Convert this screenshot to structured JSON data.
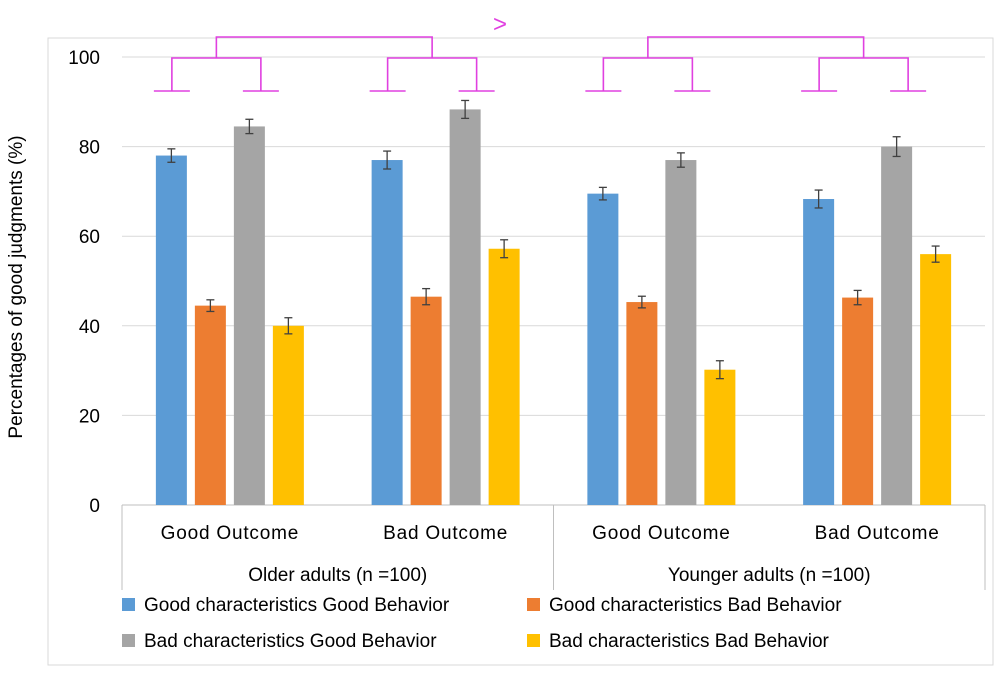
{
  "chart_data": {
    "type": "bar",
    "title": "",
    "ylabel": "Percentages of good judgments (%)",
    "xlabel": "",
    "ylim": [
      0,
      100
    ],
    "yticks": [
      0,
      20,
      40,
      60,
      80,
      100
    ],
    "gridlines": true,
    "legend_position": "bottom",
    "groups": [
      {
        "label": "Older adults (n =100)",
        "categories": [
          "Good Outcome",
          "Bad Outcome"
        ]
      },
      {
        "label": "Younger adults (n =100)",
        "categories": [
          "Good Outcome",
          "Bad Outcome"
        ]
      }
    ],
    "categories": [
      "Good Outcome",
      "Bad Outcome",
      "Good Outcome",
      "Bad Outcome"
    ],
    "series": [
      {
        "name": "Good characteristics Good Behavior",
        "color": "#5B9BD5",
        "values": [
          78,
          77,
          69.5,
          68.3
        ],
        "errors": [
          1.5,
          2.0,
          1.4,
          2.0
        ]
      },
      {
        "name": "Good characteristics Bad Behavior",
        "color": "#ED7D31",
        "values": [
          44.5,
          46.5,
          45.3,
          46.3
        ],
        "errors": [
          1.3,
          1.8,
          1.3,
          1.6
        ]
      },
      {
        "name": "Bad characteristics Good Behavior",
        "color": "#A5A5A5",
        "values": [
          84.5,
          88.3,
          77,
          80
        ],
        "errors": [
          1.6,
          2.0,
          1.6,
          2.2
        ]
      },
      {
        "name": "Bad characteristics Bad Behavior",
        "color": "#FFC000",
        "values": [
          40,
          57.2,
          30.2,
          56
        ],
        "errors": [
          1.8,
          2.0,
          2.0,
          1.8
        ]
      }
    ],
    "annotations": {
      "comparison_symbol": ">",
      "bracket_color": "#E040E0"
    }
  }
}
